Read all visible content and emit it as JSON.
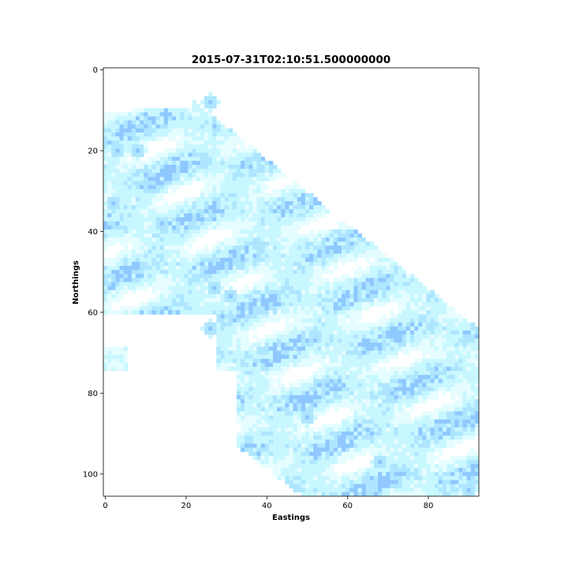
{
  "chart_data": {
    "type": "heatmap",
    "title": "2015-07-31T02:10:51.500000000",
    "xlabel": "Eastings",
    "ylabel": "Northings",
    "xlim": [
      -0.5,
      92.5
    ],
    "ylim": [
      105.5,
      -0.5
    ],
    "x_ticks": [
      0,
      20,
      40,
      60,
      80
    ],
    "y_ticks": [
      0,
      20,
      40,
      60,
      80,
      100
    ],
    "grid": false,
    "legend": "none",
    "colormap": [
      "#ffffff",
      "#e6fdff",
      "#c8f7ff",
      "#aee6ff",
      "#8fc8ff"
    ],
    "grid_shape": [
      106,
      93
    ],
    "description_of_values": "precipitation-like intensity field, low values (pale cyan) with patches of higher values (blue)"
  }
}
